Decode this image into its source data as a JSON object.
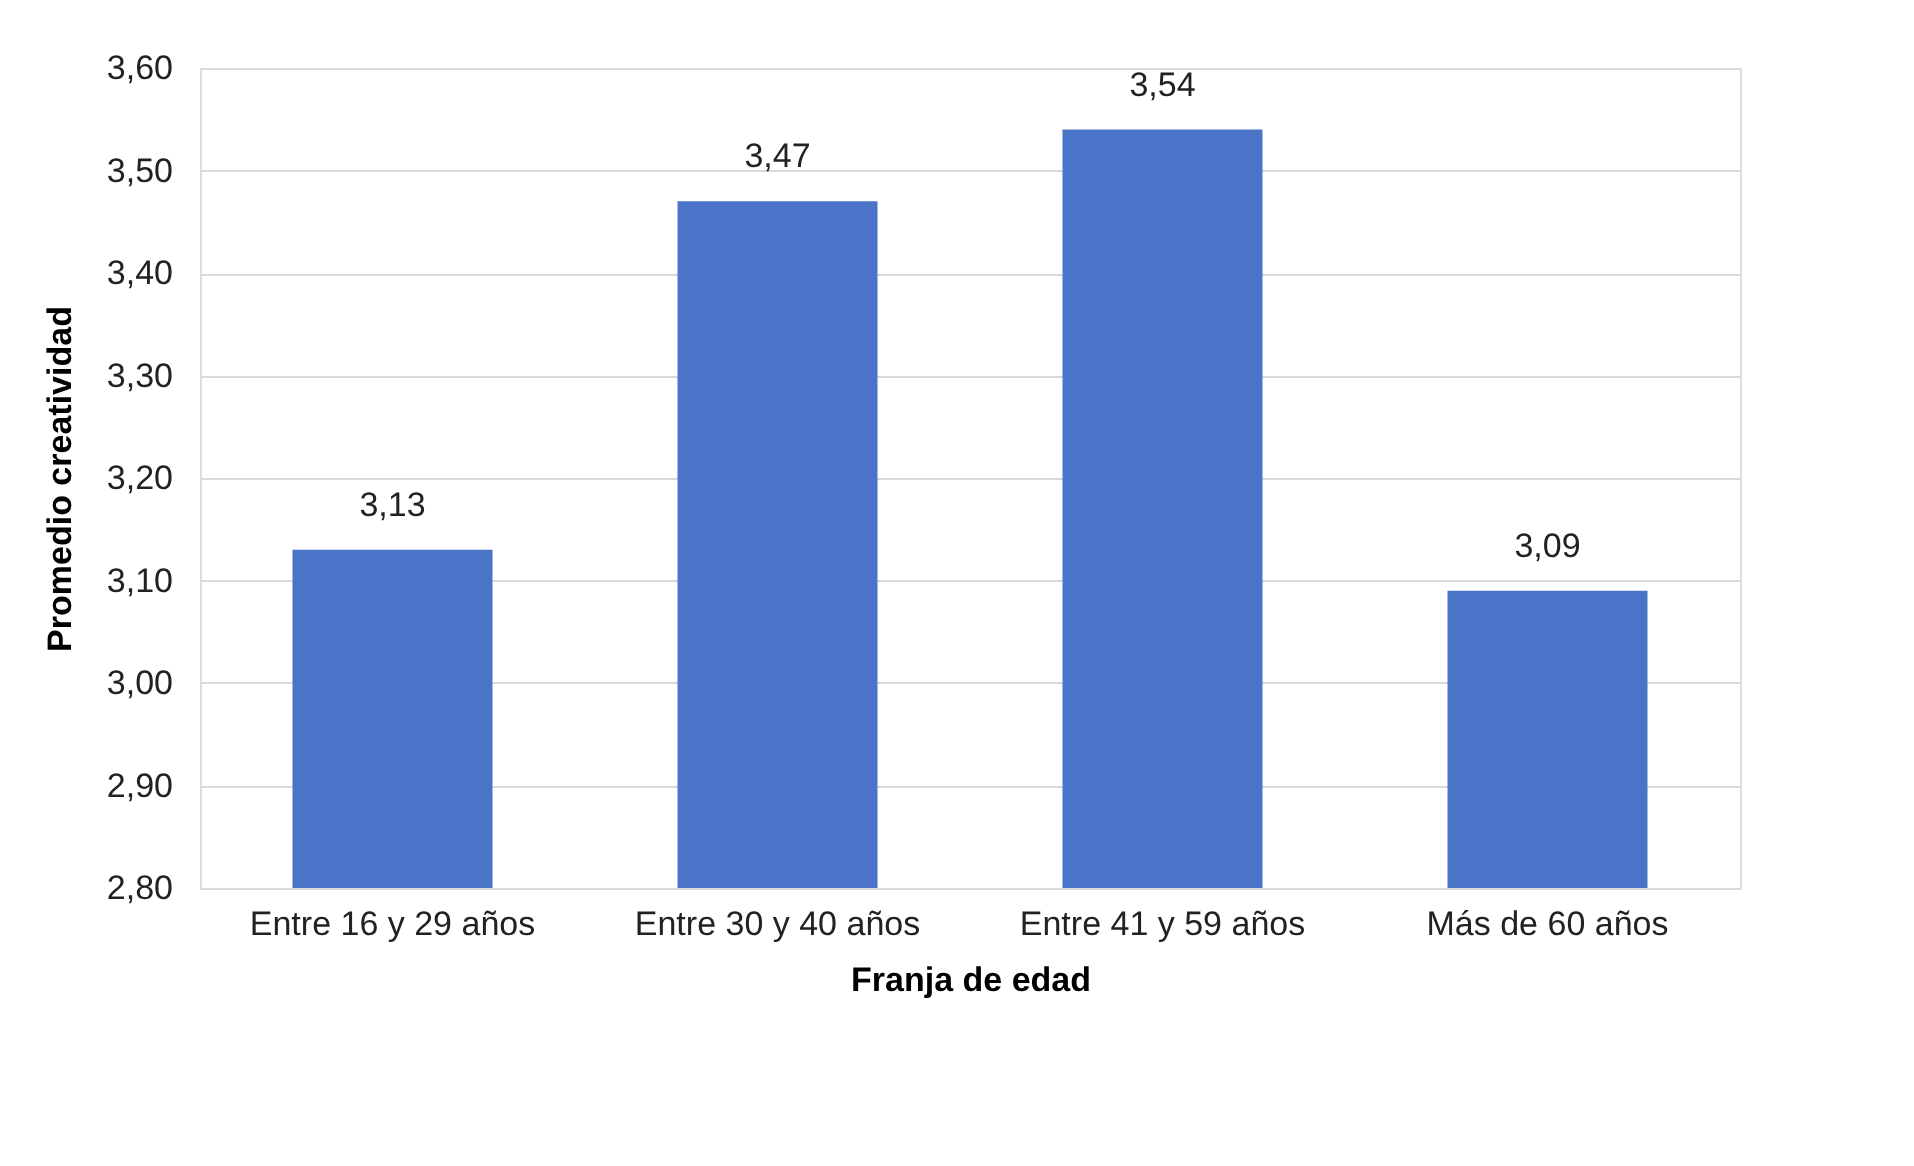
{
  "chart_data": {
    "type": "bar",
    "xlabel": "Franja de edad",
    "ylabel": "Promedio creatividad",
    "categories": [
      "Entre 16 y 29 años",
      "Entre 30 y 40 años",
      "Entre 41 y 59 años",
      "Más de 60 años"
    ],
    "values": [
      3.13,
      3.47,
      3.54,
      3.09
    ],
    "value_labels": [
      "3,13",
      "3,47",
      "3,54",
      "3,09"
    ],
    "color": "#4a74c8",
    "ylim": [
      2.8,
      3.6
    ],
    "yticks": [
      {
        "value": 2.8,
        "label": "2,80"
      },
      {
        "value": 2.9,
        "label": "2,90"
      },
      {
        "value": 3.0,
        "label": "3,00"
      },
      {
        "value": 3.1,
        "label": "3,10"
      },
      {
        "value": 3.2,
        "label": "3,20"
      },
      {
        "value": 3.3,
        "label": "3,30"
      },
      {
        "value": 3.4,
        "label": "3,40"
      },
      {
        "value": 3.5,
        "label": "3,50"
      },
      {
        "value": 3.6,
        "label": "3,60"
      }
    ],
    "grid": "y"
  }
}
